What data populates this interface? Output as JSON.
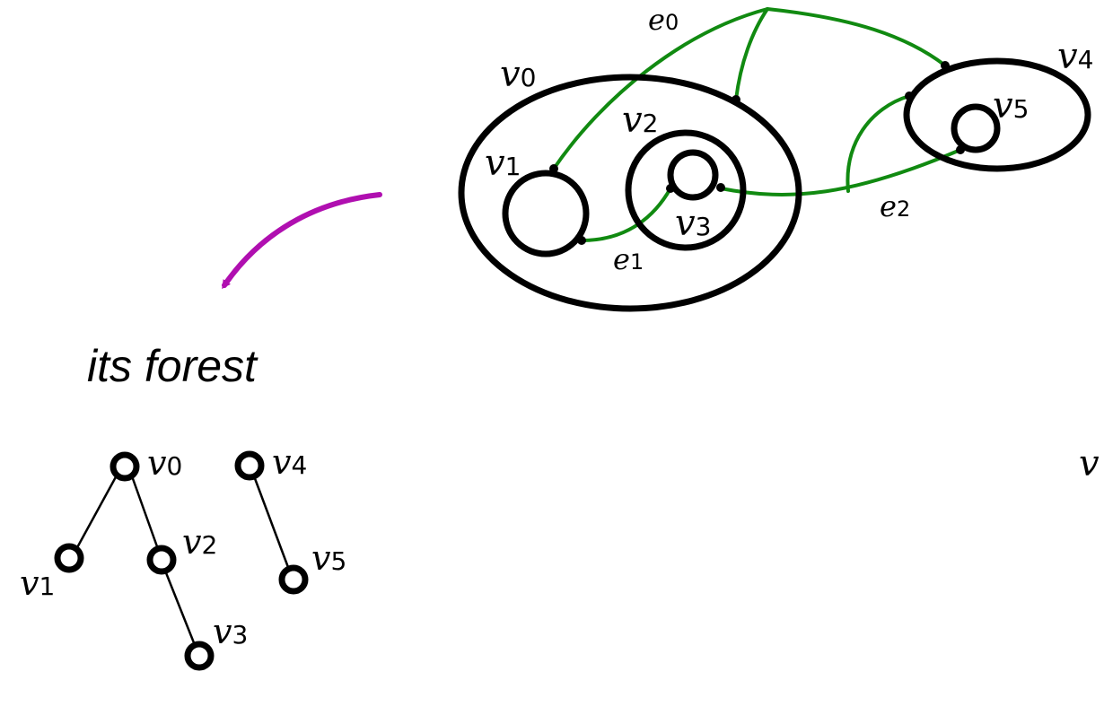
{
  "colors": {
    "edge": "#118a11",
    "arrow": "#b00fb0",
    "ink": "#000000"
  },
  "caption": "its forest",
  "nesting": {
    "regions": [
      {
        "id": "v0",
        "base": "v",
        "sub": "0"
      },
      {
        "id": "v1",
        "base": "v",
        "sub": "1"
      },
      {
        "id": "v2",
        "base": "v",
        "sub": "2"
      },
      {
        "id": "v3",
        "base": "v",
        "sub": "3"
      },
      {
        "id": "v4",
        "base": "v",
        "sub": "4"
      },
      {
        "id": "v5",
        "base": "v",
        "sub": "5"
      }
    ],
    "edges": [
      {
        "id": "e0",
        "base": "e",
        "sub": "0"
      },
      {
        "id": "e1",
        "base": "e",
        "sub": "1"
      },
      {
        "id": "e2",
        "base": "e",
        "sub": "2"
      }
    ]
  },
  "forest": {
    "nodes": [
      {
        "id": "v0",
        "base": "v",
        "sub": "0"
      },
      {
        "id": "v1",
        "base": "v",
        "sub": "1"
      },
      {
        "id": "v2",
        "base": "v",
        "sub": "2"
      },
      {
        "id": "v3",
        "base": "v",
        "sub": "3"
      },
      {
        "id": "v4",
        "base": "v",
        "sub": "4"
      },
      {
        "id": "v5",
        "base": "v",
        "sub": "5"
      }
    ],
    "edges": [
      {
        "from": "v0",
        "to": "v1"
      },
      {
        "from": "v0",
        "to": "v2"
      },
      {
        "from": "v2",
        "to": "v3"
      },
      {
        "from": "v4",
        "to": "v5"
      }
    ]
  },
  "edge_label": {
    "base": "v"
  }
}
